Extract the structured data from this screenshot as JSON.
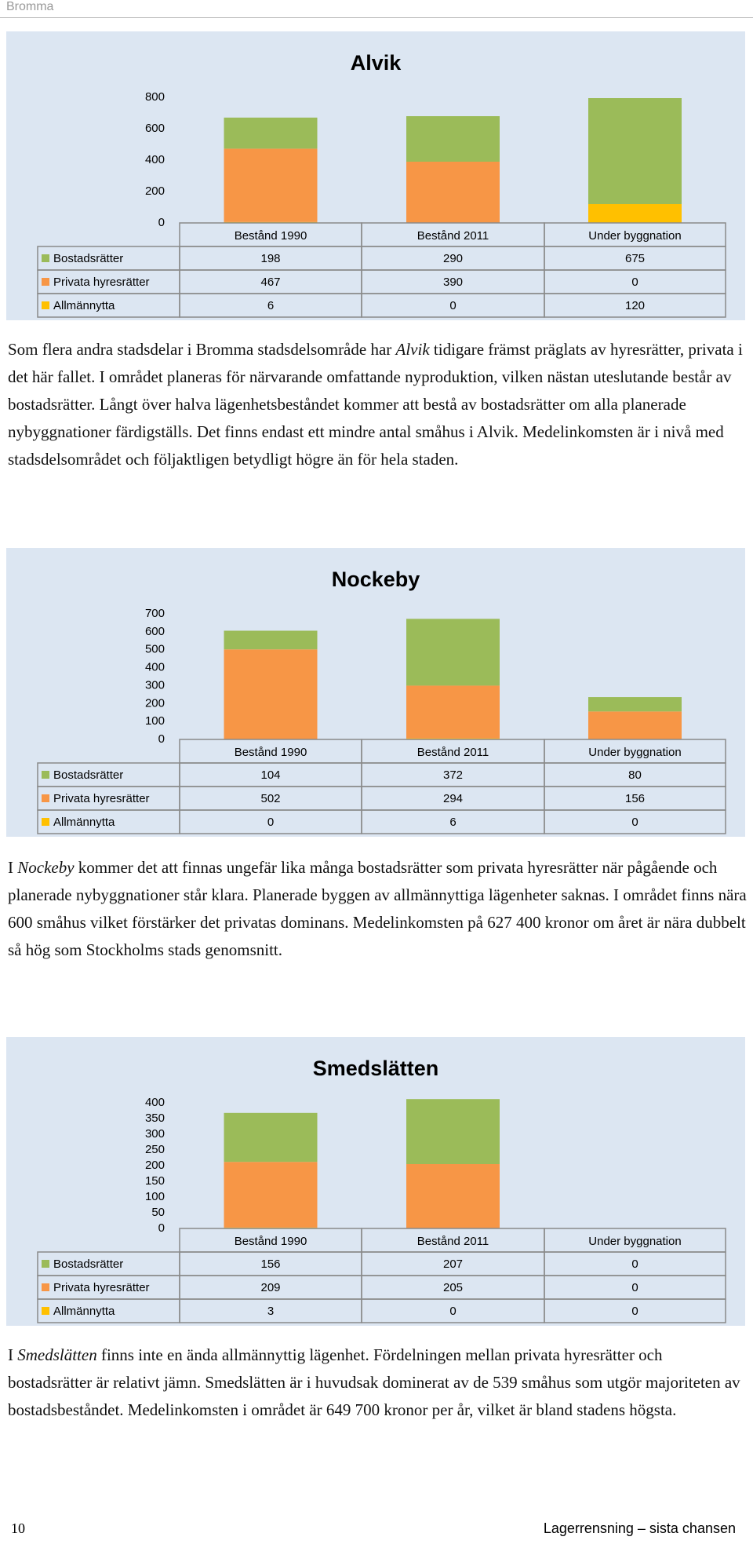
{
  "header": {
    "title": "Bromma"
  },
  "chart_data": [
    {
      "type": "bar",
      "stacked": true,
      "data_table": true,
      "grid": false,
      "title": "Alvik",
      "categories": [
        "Bestånd 1990",
        "Bestånd 2011",
        "Under byggnation"
      ],
      "series": [
        {
          "name": "Bostadsrätter",
          "color": "#9bbb59",
          "values": [
            198,
            290,
            675
          ]
        },
        {
          "name": "Privata hyresrätter",
          "color": "#f79646",
          "values": [
            467,
            390,
            0
          ]
        },
        {
          "name": "Allmännytta",
          "color": "#ffc000",
          "values": [
            6,
            0,
            120
          ]
        }
      ],
      "ylim": [
        0,
        800
      ],
      "yticks": [
        0,
        200,
        400,
        600,
        800
      ]
    },
    {
      "type": "bar",
      "stacked": true,
      "data_table": true,
      "grid": false,
      "title": "Nockeby",
      "categories": [
        "Bestånd 1990",
        "Bestånd 2011",
        "Under byggnation"
      ],
      "series": [
        {
          "name": "Bostadsrätter",
          "color": "#9bbb59",
          "values": [
            104,
            372,
            80
          ]
        },
        {
          "name": "Privata hyresrätter",
          "color": "#f79646",
          "values": [
            502,
            294,
            156
          ]
        },
        {
          "name": "Allmännytta",
          "color": "#ffc000",
          "values": [
            0,
            6,
            0
          ]
        }
      ],
      "ylim": [
        0,
        700
      ],
      "yticks": [
        0,
        100,
        200,
        300,
        400,
        500,
        600,
        700
      ]
    },
    {
      "type": "bar",
      "stacked": true,
      "data_table": true,
      "grid": false,
      "title": "Smedslätten",
      "categories": [
        "Bestånd 1990",
        "Bestånd 2011",
        "Under byggnation"
      ],
      "series": [
        {
          "name": "Bostadsrätter",
          "color": "#9bbb59",
          "values": [
            156,
            207,
            0
          ]
        },
        {
          "name": "Privata hyresrätter",
          "color": "#f79646",
          "values": [
            209,
            205,
            0
          ]
        },
        {
          "name": "Allmännytta",
          "color": "#ffc000",
          "values": [
            3,
            0,
            0
          ]
        }
      ],
      "ylim": [
        0,
        400
      ],
      "yticks": [
        0,
        50,
        100,
        150,
        200,
        250,
        300,
        350,
        400
      ]
    }
  ],
  "paragraphs": [
    [
      {
        "text": "Som flera andra stadsdelar i Bromma stadsdelsområde har ",
        "italic": false
      },
      {
        "text": "Alvik",
        "italic": true
      },
      {
        "text": " tidigare främst präglats av hyresrätter, privata i det här fallet. I området planeras för närvarande omfattande nyproduktion, vilken nästan uteslutande består av bostadsrätter. Långt över halva lägenhetsbeståndet kommer att bestå av bostadsrätter om alla planerade nybyggnationer färdigställs. Det finns endast ett mindre antal småhus i Alvik. Medelinkomsten är i nivå med stadsdelsområdet och följaktligen betydligt högre än för hela staden.",
        "italic": false
      }
    ],
    [
      {
        "text": "I ",
        "italic": false
      },
      {
        "text": "Nockeby",
        "italic": true
      },
      {
        "text": " kommer det att finnas ungefär lika många bostadsrätter som privata hyresrätter när pågående och planerade nybyggnationer står klara. Planerade byggen av allmännyttiga lägenheter saknas. I området finns nära 600 småhus vilket förstärker det privatas dominans. Medelinkomsten på 627 400 kronor om året är nära dubbelt så hög som Stockholms stads genomsnitt.",
        "italic": false
      }
    ],
    [
      {
        "text": "I ",
        "italic": false
      },
      {
        "text": "Smedslätten",
        "italic": true
      },
      {
        "text": " finns inte en ända allmännyttig lägenhet. Fördelningen mellan privata hyresrätter och bostadsrätter är relativt jämn. Smedslätten är i huvudsak dominerat av de 539 småhus som utgör majoriteten av bostadsbeståndet. Medelinkomsten i området är 649 700 kronor per år, vilket är bland stadens högsta.",
        "italic": false
      }
    ]
  ],
  "footer": {
    "page": "10",
    "title": "Lagerrensning – sista chansen"
  }
}
